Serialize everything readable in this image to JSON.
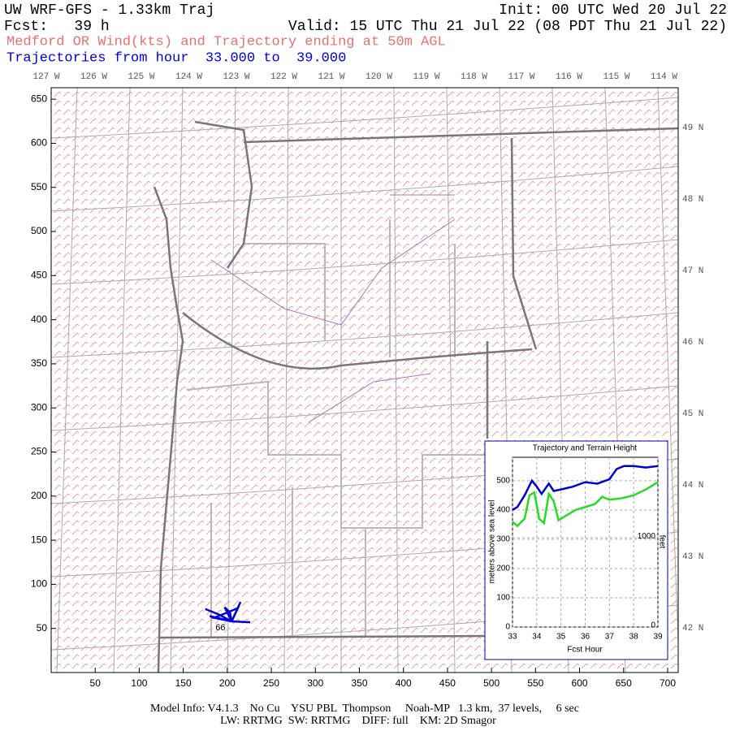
{
  "header": {
    "model": "UW WRF-GFS - 1.33km Traj",
    "init": "Init: 00 UTC Wed 20 Jul 22",
    "fcst": "Fcst:   39 h",
    "valid": "Valid: 15 UTC Thu 21 Jul 22 (08 PDT Thu 21 Jul 22)",
    "field": "Medford OR Wind(kts) and Trajectory ending at 50m AGL",
    "hours": "Trajectories from hour  33.000 to  39.000"
  },
  "map": {
    "xlim": [
      0,
      712
    ],
    "ylim": [
      0,
      663
    ],
    "xticks": [
      50,
      100,
      150,
      200,
      250,
      300,
      350,
      400,
      450,
      500,
      550,
      600,
      650,
      700
    ],
    "yticks": [
      50,
      100,
      150,
      200,
      250,
      300,
      350,
      400,
      450,
      500,
      550,
      600,
      650
    ],
    "longitudes": [
      "127 W",
      "126 W",
      "125 W",
      "124 W",
      "123 W",
      "122 W",
      "121 W",
      "120 W",
      "119 W",
      "118 W",
      "117 W",
      "116 W",
      "115 W",
      "114 W"
    ],
    "latitudes": [
      "49 N",
      "48 N",
      "47 N",
      "46 N",
      "45 N",
      "44 N",
      "43 N",
      "42 N"
    ],
    "trajectory": {
      "label": "66",
      "color": "#0000dd",
      "x": [
        175,
        190,
        205,
        185,
        212,
        205,
        226,
        205,
        197,
        203,
        205,
        180,
        205,
        215,
        205
      ],
      "y": [
        72,
        66,
        58,
        62,
        73,
        58,
        57,
        58,
        74,
        68,
        58,
        64,
        58,
        80,
        58
      ]
    }
  },
  "inset_chart": {
    "type": "line",
    "title": "Trajectory and Terrain Height",
    "xlabel": "Fcst Hour",
    "ylabel": "meters above sea level",
    "y2label": "feet",
    "xlim": [
      33,
      39
    ],
    "ylim": [
      0,
      580
    ],
    "xticks": [
      33,
      34,
      35,
      36,
      37,
      38,
      39
    ],
    "yticks": [
      0,
      100,
      200,
      300,
      400,
      500
    ],
    "y2lim": [
      0,
      1903
    ],
    "y2ticks": [
      0,
      1000
    ],
    "grid": true,
    "series": [
      {
        "color": "#0000cc",
        "x": [
          33,
          33.2,
          33.5,
          33.8,
          34,
          34.2,
          34.5,
          34.7,
          35,
          35.5,
          36,
          36.5,
          37,
          37.3,
          37.6,
          38,
          38.5,
          39
        ],
        "values": [
          400,
          410,
          450,
          500,
          480,
          455,
          490,
          465,
          470,
          480,
          495,
          490,
          505,
          540,
          550,
          550,
          545,
          550
        ]
      },
      {
        "color": "#22dd22",
        "x": [
          33,
          33.2,
          33.5,
          33.7,
          33.9,
          34.1,
          34.3,
          34.5,
          34.7,
          34.9,
          35.2,
          35.6,
          36,
          36.4,
          36.7,
          37,
          37.5,
          38,
          38.5,
          39
        ],
        "values": [
          360,
          345,
          370,
          450,
          460,
          370,
          355,
          455,
          430,
          365,
          380,
          400,
          410,
          420,
          445,
          435,
          440,
          450,
          470,
          495
        ]
      }
    ]
  },
  "footer": {
    "line1": "Model Info: V4.1.3    No Cu    YSU PBL  Thompson     Noah-MP   1.3 km,  37 levels,     6 sec",
    "line2": "LW: RRTMG  SW: RRTMG    DIFF: full    KM: 2D Smagor"
  }
}
